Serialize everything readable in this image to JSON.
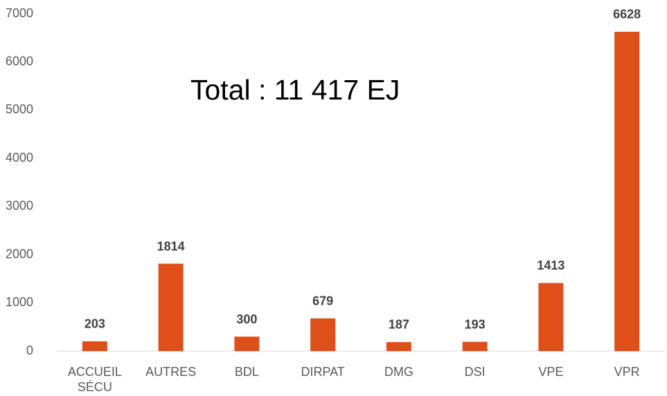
{
  "chart_data": {
    "type": "bar",
    "annotation": "Total : 11 417 EJ",
    "categories": [
      "ACCUEIL SÉCU",
      "AUTRES",
      "BDL",
      "DIRPAT",
      "DMG",
      "DSI",
      "VPE",
      "VPR"
    ],
    "values": [
      203,
      1814,
      300,
      679,
      187,
      193,
      1413,
      6628
    ],
    "color": "#e04f1a",
    "ylim": [
      0,
      7000
    ],
    "yticks": [
      0,
      1000,
      2000,
      3000,
      4000,
      5000,
      6000,
      7000
    ],
    "grid": false
  }
}
